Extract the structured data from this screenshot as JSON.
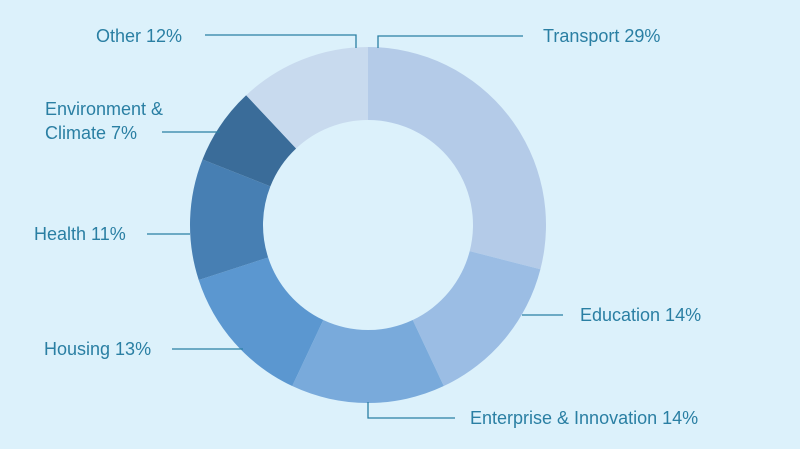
{
  "chart_data": {
    "type": "pie",
    "donut": true,
    "title": "",
    "slices": [
      {
        "label": "Transport",
        "value": 29,
        "text": "Transport 29%",
        "color": "#b4cbe8"
      },
      {
        "label": "Education",
        "value": 14,
        "text": "Education 14%",
        "color": "#9bbde4"
      },
      {
        "label": "Enterprise & Innovation",
        "value": 14,
        "text": "Enterprise & Innovation 14%",
        "color": "#79aadb"
      },
      {
        "label": "Housing",
        "value": 13,
        "text": "Housing 13%",
        "color": "#5b97d0"
      },
      {
        "label": "Health",
        "value": 11,
        "text": "Health 11%",
        "color": "#477fb3"
      },
      {
        "label": "Environment & Climate",
        "value": 7,
        "text_lines": [
          "Environment &",
          "Climate 7%"
        ],
        "color": "#3a6c99"
      },
      {
        "label": "Other",
        "value": 12,
        "text": "Other 12%",
        "color": "#c8daee"
      }
    ]
  }
}
